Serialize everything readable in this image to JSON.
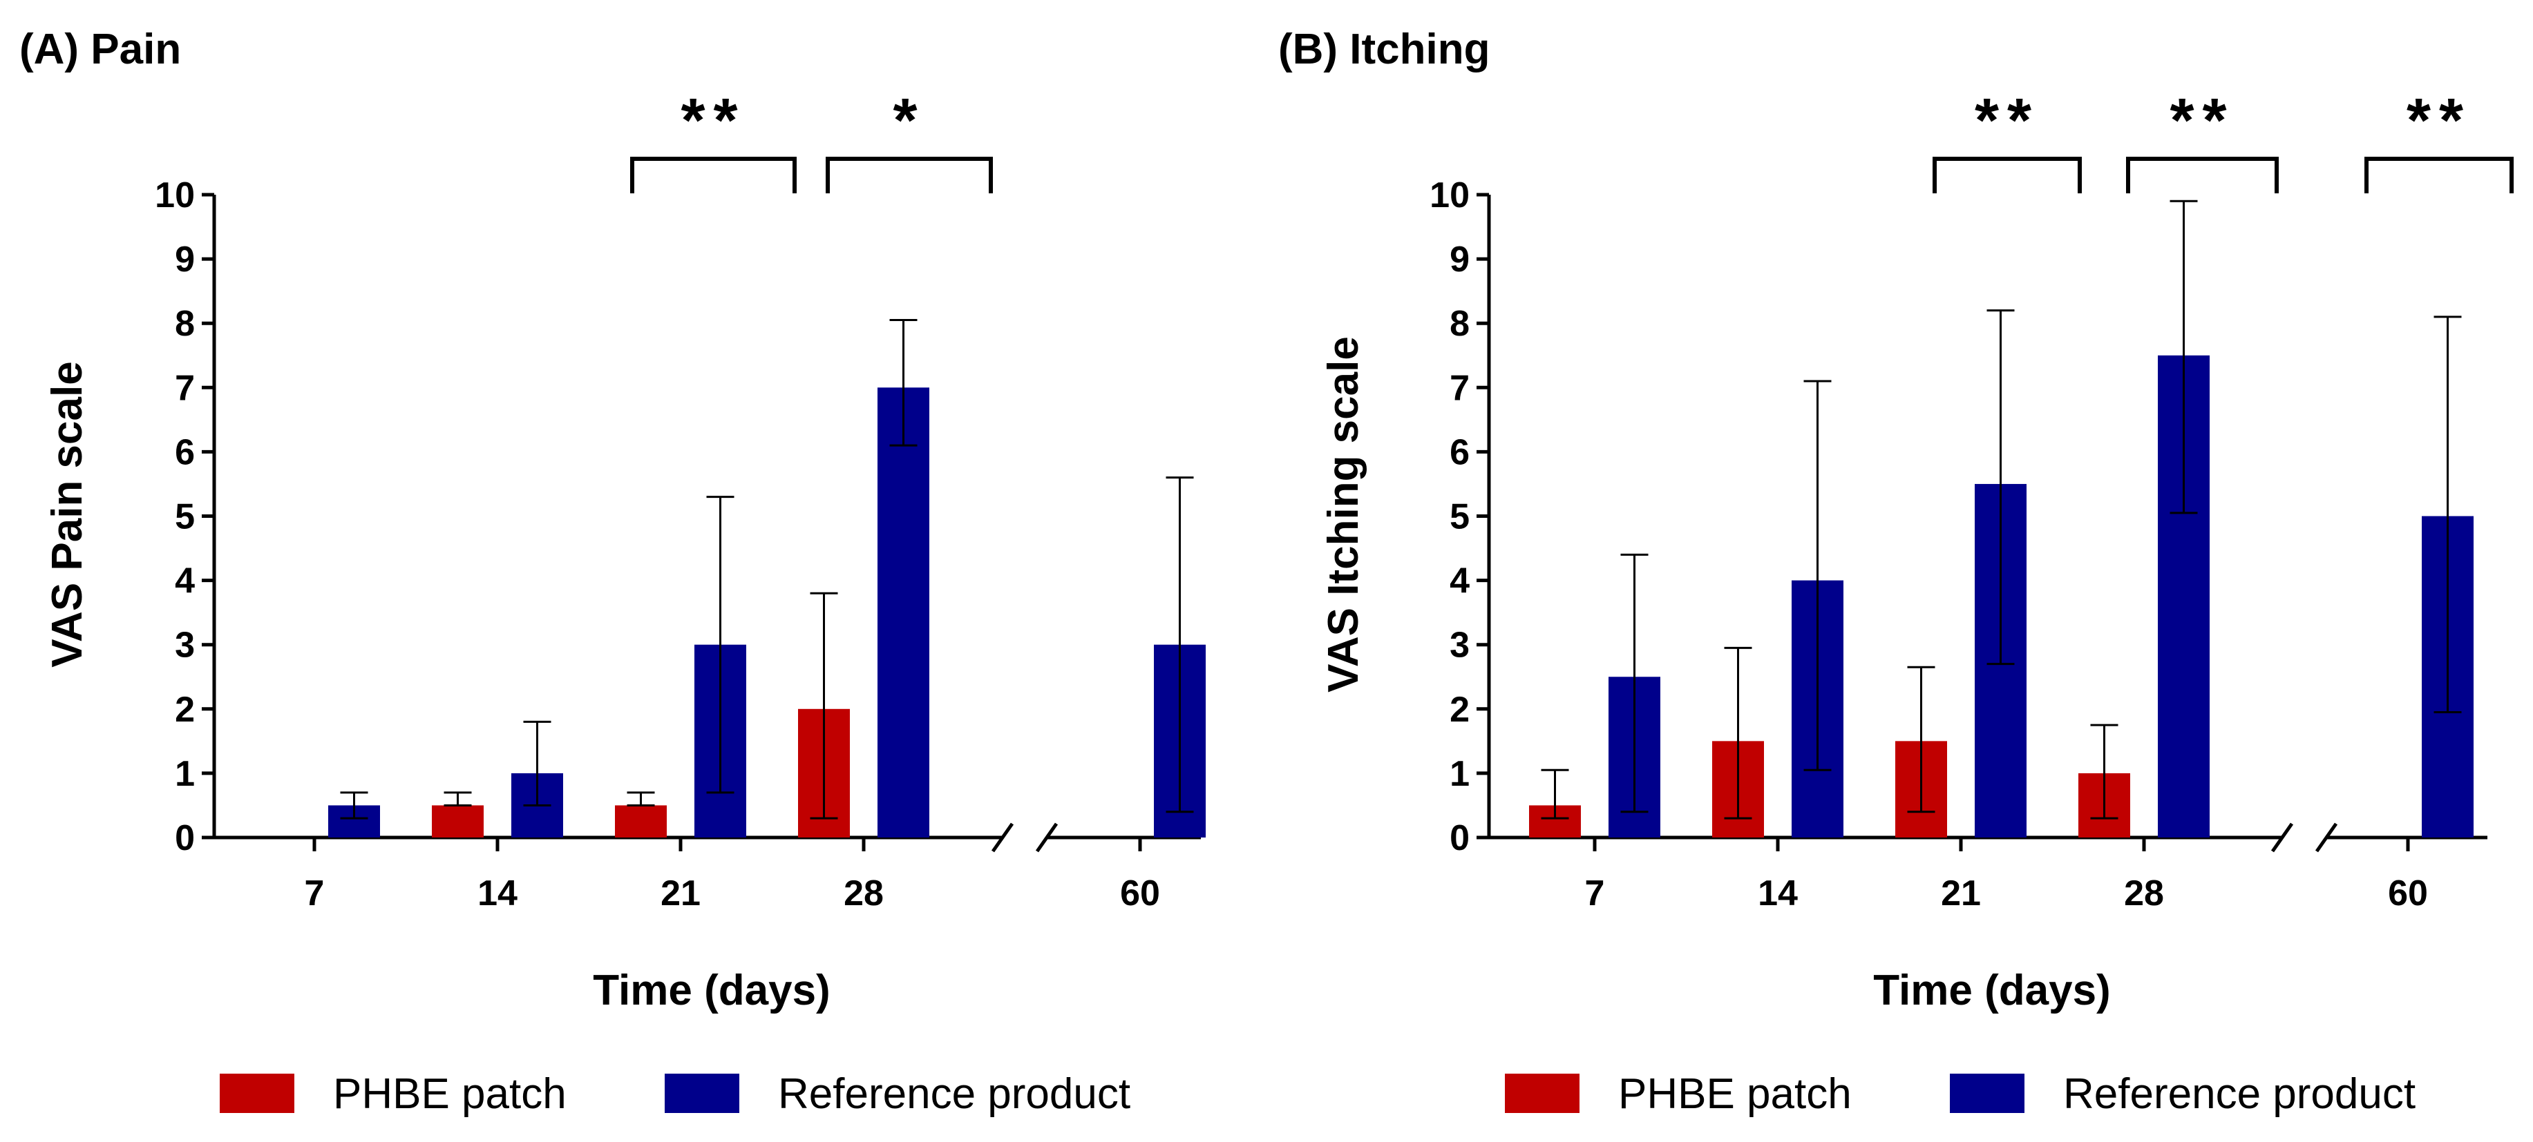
{
  "legend": [
    {
      "name": "PHBE patch",
      "color": "#C00000"
    },
    {
      "name": "Reference product",
      "color": "#00008B"
    }
  ],
  "chart_data": [
    {
      "type": "bar",
      "title": "(A) Pain",
      "xlabel": "Time (days)",
      "ylabel": "VAS Pain scale",
      "categories": [
        "7",
        "14",
        "21",
        "28",
        "60"
      ],
      "ylim": [
        0,
        10
      ],
      "yticks": [
        "0",
        "1",
        "2",
        "3",
        "4",
        "5",
        "6",
        "7",
        "8",
        "9",
        "10"
      ],
      "axis_break": "between 28 and 60",
      "series": [
        {
          "name": "PHBE patch",
          "color": "#C00000",
          "values": [
            0,
            0.5,
            0.5,
            2,
            0
          ],
          "error_upper": [
            0,
            0.7,
            0.7,
            3.8,
            0
          ],
          "error_lower": [
            0,
            0.5,
            0.5,
            0.3,
            0
          ]
        },
        {
          "name": "Reference product",
          "color": "#00008B",
          "values": [
            0.5,
            1,
            3,
            7,
            3
          ],
          "error_upper": [
            0.7,
            1.8,
            5.3,
            8.05,
            5.6
          ],
          "error_lower": [
            0.3,
            0.5,
            0.7,
            6.1,
            0.4
          ]
        }
      ],
      "significance": [
        {
          "category": "21",
          "label": "**"
        },
        {
          "category": "28",
          "label": "*"
        }
      ]
    },
    {
      "type": "bar",
      "title": "(B) Itching",
      "xlabel": "Time (days)",
      "ylabel": "VAS Itching scale",
      "categories": [
        "7",
        "14",
        "21",
        "28",
        "60"
      ],
      "ylim": [
        0,
        10
      ],
      "yticks": [
        "0",
        "1",
        "2",
        "3",
        "4",
        "5",
        "6",
        "7",
        "8",
        "9",
        "10"
      ],
      "axis_break": "between 28 and 60",
      "series": [
        {
          "name": "PHBE patch",
          "color": "#C00000",
          "values": [
            0.5,
            1.5,
            1.5,
            1,
            0
          ],
          "error_upper": [
            1.05,
            2.95,
            2.65,
            1.75,
            0
          ],
          "error_lower": [
            0.3,
            0.3,
            0.4,
            0.3,
            0
          ]
        },
        {
          "name": "Reference product",
          "color": "#00008B",
          "values": [
            2.5,
            4,
            5.5,
            7.5,
            5
          ],
          "error_upper": [
            4.4,
            7.1,
            8.2,
            9.9,
            8.1
          ],
          "error_lower": [
            0.4,
            1.05,
            2.7,
            5.05,
            1.95
          ]
        }
      ],
      "significance": [
        {
          "category": "21",
          "label": "**"
        },
        {
          "category": "28",
          "label": "**"
        },
        {
          "category": "60",
          "label": "**"
        }
      ]
    }
  ]
}
